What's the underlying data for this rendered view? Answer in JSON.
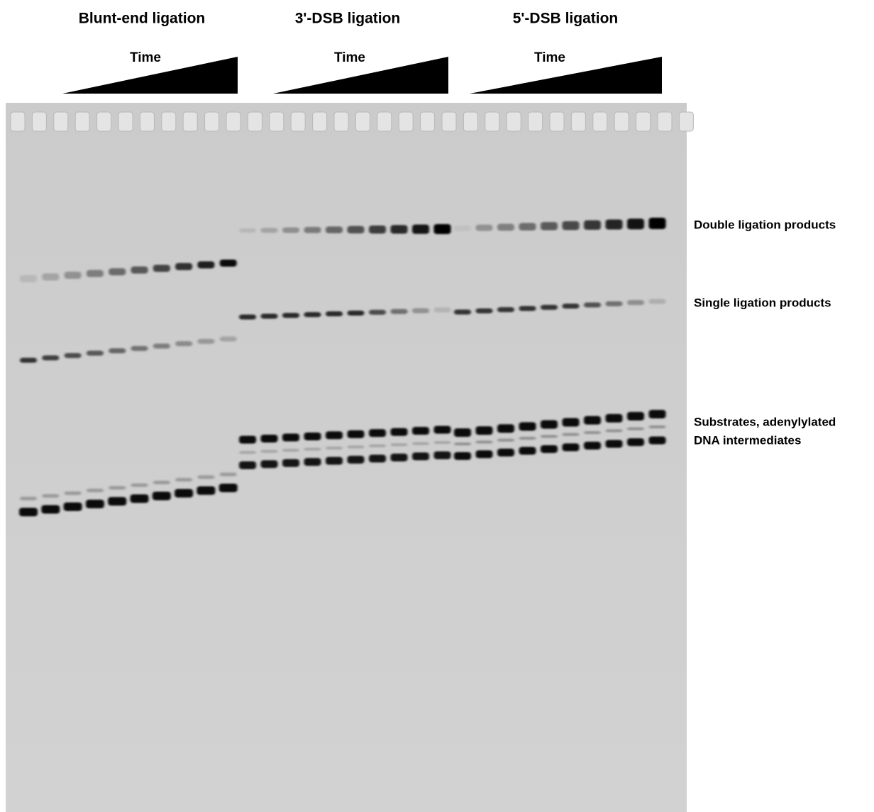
{
  "groups": [
    {
      "title": "Blunt-end ligation",
      "ramp": "Time"
    },
    {
      "title": "3'-DSB ligation",
      "ramp": "Time"
    },
    {
      "title": "5'-DSB ligation",
      "ramp": "Time"
    }
  ],
  "band_labels": [
    {
      "lines": [
        "Double ligation products"
      ]
    },
    {
      "lines": [
        "Single ligation products"
      ]
    },
    {
      "lines": [
        "Substrates, adenylylated",
        "DNA intermediates"
      ]
    }
  ]
}
